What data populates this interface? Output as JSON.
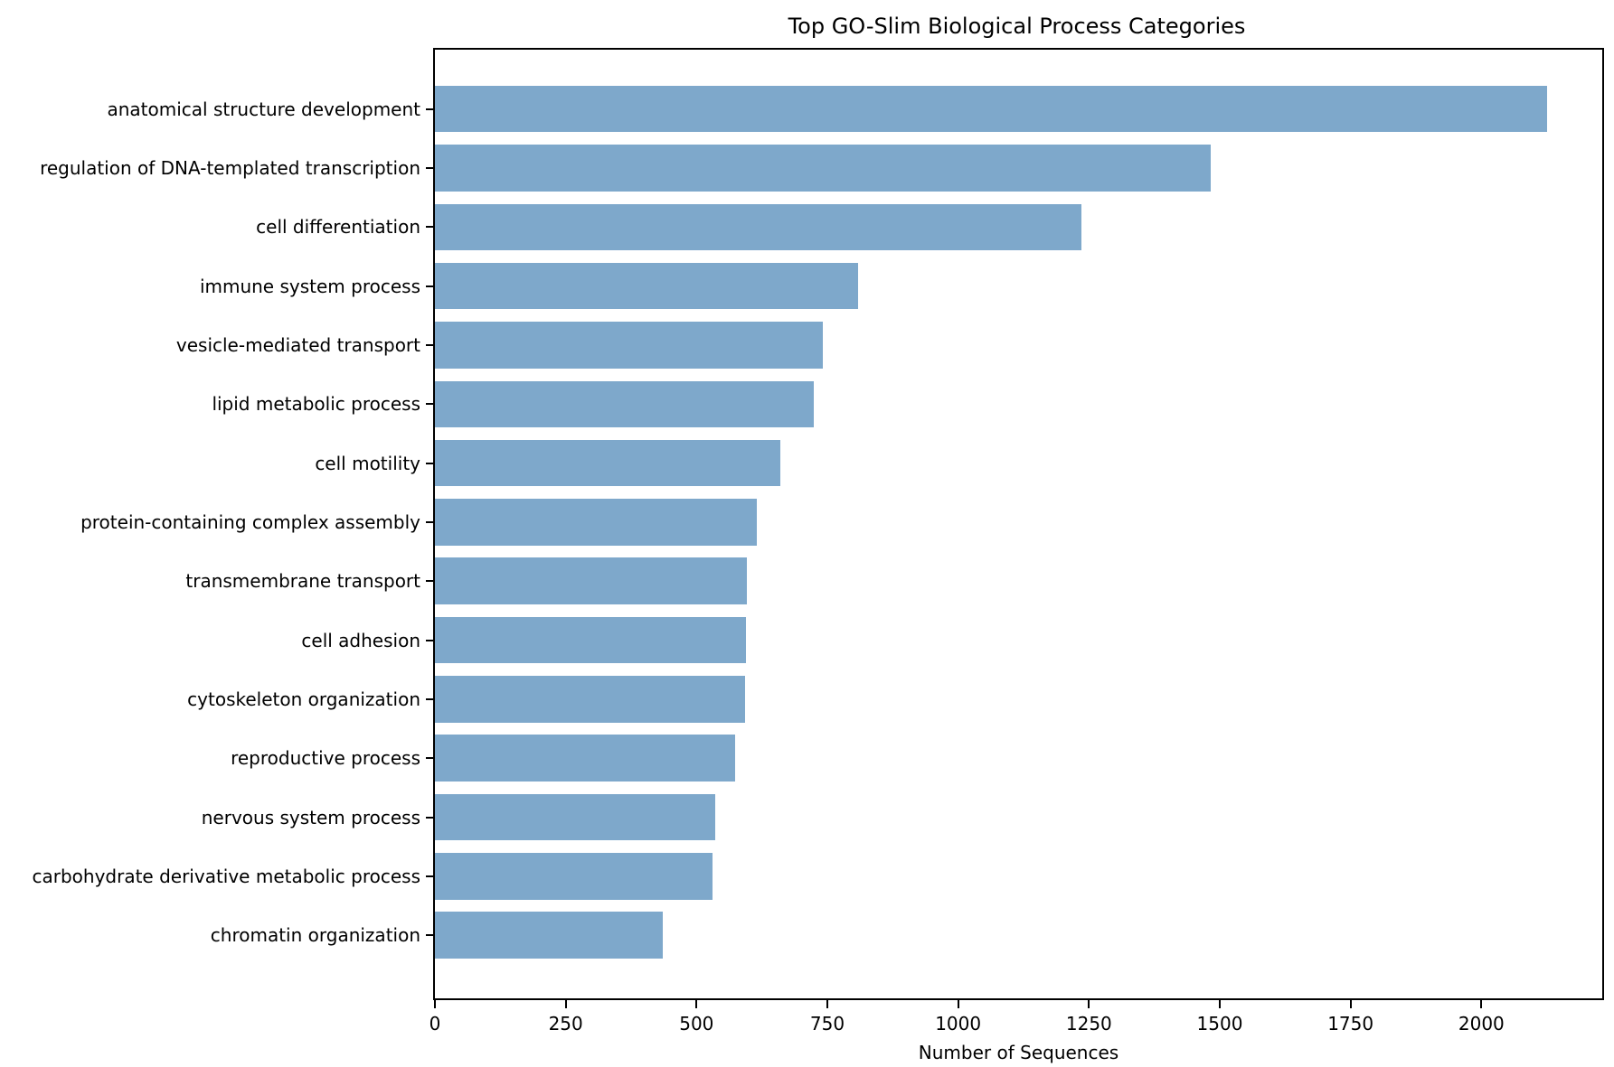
{
  "title": "Top GO-Slim Biological Process Categories",
  "chart_data": {
    "type": "bar",
    "orientation": "horizontal",
    "title": "Top GO-Slim Biological Process Categories",
    "xlabel": "Number of Sequences",
    "ylabel": "",
    "categories": [
      "anatomical structure development",
      "regulation of DNA-templated transcription",
      "cell differentiation",
      "immune system process",
      "vesicle-mediated transport",
      "lipid metabolic process",
      "cell motility",
      "protein-containing complex assembly",
      "transmembrane transport",
      "cell adhesion",
      "cytoskeleton organization",
      "reproductive process",
      "nervous system process",
      "carbohydrate derivative metabolic process",
      "chromatin organization"
    ],
    "values": [
      2125,
      1483,
      1236,
      808,
      742,
      724,
      661,
      616,
      597,
      595,
      593,
      574,
      536,
      531,
      436
    ],
    "xlim": [
      0,
      2231
    ],
    "xticks": [
      0,
      250,
      500,
      750,
      1000,
      1250,
      1500,
      1750,
      2000
    ],
    "bar_color": "#7EA8CB",
    "spine_color": "#000000",
    "grid": false,
    "legend": "none"
  }
}
